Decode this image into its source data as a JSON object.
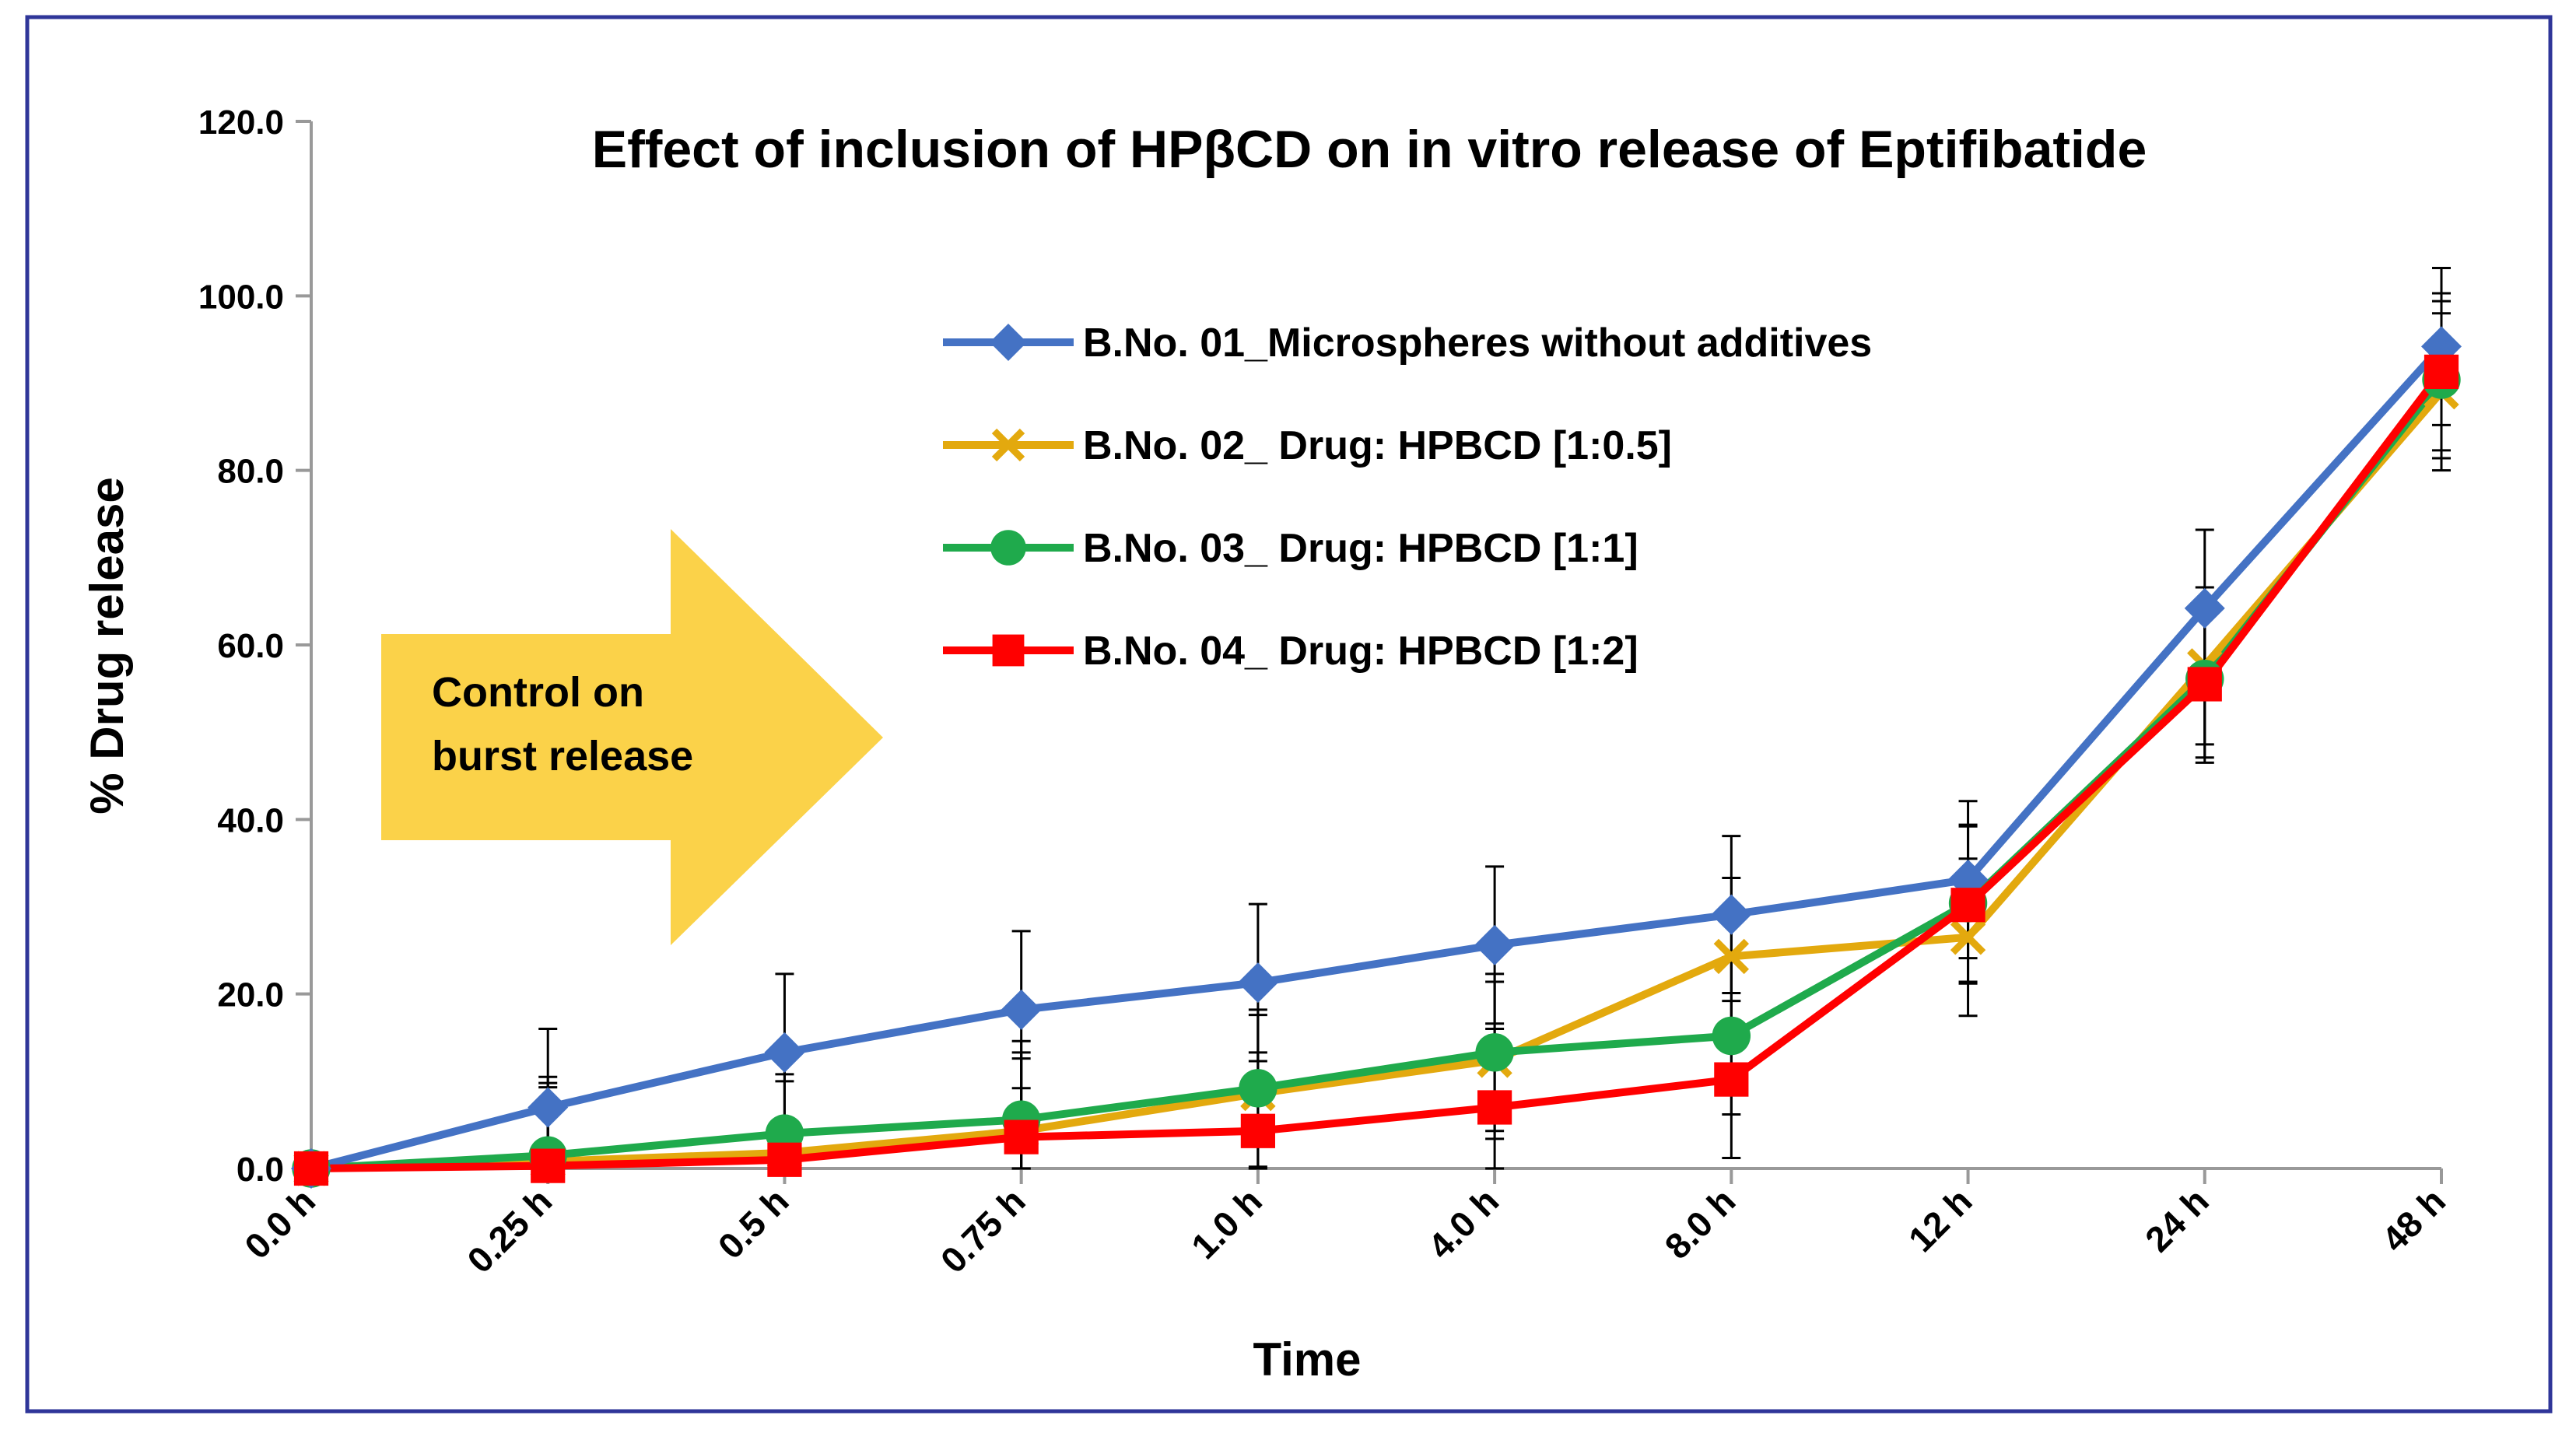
{
  "chart_data": {
    "type": "line",
    "title": "Effect of inclusion of HPβCD on in vitro release of Eptifibatide",
    "xlabel": "Time",
    "ylabel": "% Drug release",
    "ylim": [
      0,
      120
    ],
    "yticks": [
      "0.0",
      "20.0",
      "40.0",
      "60.0",
      "80.0",
      "100.0",
      "120.0"
    ],
    "categories": [
      "0.0 h",
      "0.25 h",
      "0.5 h",
      "0.75 h",
      "1.0 h",
      "4.0 h",
      "8.0 h",
      "12 h",
      "24 h",
      "48 h"
    ],
    "series": [
      {
        "name": "B.No. 01_Microspheres without additives",
        "color": "#4472C4",
        "marker": "diamond",
        "values": [
          0.0,
          7.0,
          13.3,
          18.2,
          21.3,
          25.6,
          29.1,
          33.1,
          64.2,
          94.2
        ],
        "errors": [
          0.0,
          9.0,
          9.0,
          9.0,
          9.0,
          9.0,
          9.0,
          9.0,
          9.0,
          9.0
        ]
      },
      {
        "name": "B.No. 02_ Drug: HPBCD [1:0.5]",
        "color": "#E3A90E",
        "marker": "x",
        "values": [
          0.0,
          0.8,
          1.8,
          4.3,
          8.6,
          12.4,
          24.3,
          26.5,
          57.6,
          89.0
        ],
        "errors": [
          0.0,
          9.0,
          9.0,
          9.0,
          9.0,
          9.0,
          9.0,
          9.0,
          9.0,
          9.0
        ]
      },
      {
        "name": "B.No. 03_ Drug: HPBCD [1:1]",
        "color": "#1FAA4C",
        "marker": "circle",
        "values": [
          0.0,
          1.5,
          4.0,
          5.6,
          9.2,
          13.3,
          15.2,
          30.4,
          56.1,
          90.4
        ],
        "errors": [
          0.0,
          9.0,
          9.0,
          9.0,
          9.0,
          9.0,
          9.0,
          9.0,
          9.0,
          9.0
        ]
      },
      {
        "name": "B.No. 04_ Drug: HPBCD [1:2]",
        "color": "#FF0000",
        "marker": "square",
        "values": [
          0.0,
          0.3,
          1.0,
          3.6,
          4.3,
          7.0,
          10.2,
          30.2,
          55.5,
          91.3
        ],
        "errors": [
          0.0,
          9.0,
          9.0,
          9.0,
          9.0,
          9.0,
          9.0,
          9.0,
          9.0,
          9.0
        ]
      }
    ],
    "legend_position": "upper-center",
    "annotation": {
      "lines": [
        "Control on",
        "burst release"
      ],
      "color": "#FBD249"
    },
    "frame_color": "#2F3699"
  }
}
